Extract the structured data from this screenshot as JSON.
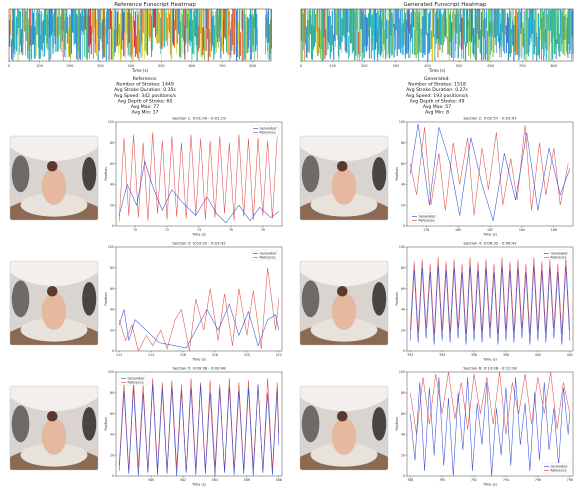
{
  "heatmaps": [
    {
      "title": "Reference Funscript Heatmap",
      "xlabel": "Time (s)",
      "ticks": [
        0,
        100,
        200,
        300,
        400,
        500,
        600,
        700,
        800
      ],
      "xlim": [
        0,
        860
      ],
      "gap": [
        815,
        840
      ],
      "seed": 7
    },
    {
      "title": "Generated Funscript Heatmap",
      "xlabel": "Time (s)",
      "ticks": [
        0,
        100,
        200,
        300,
        400,
        500,
        600,
        700,
        800
      ],
      "xlim": [
        0,
        860
      ],
      "gap": [],
      "seed": 31
    }
  ],
  "stats": [
    {
      "lines": [
        "Reference:",
        "Number of Strokes: 1449",
        "Avg Stroke Duration: 0.35s",
        "Avg Speed: 342 positions/s",
        "Avg Depth of Stroke: 60",
        "Avg Max: 77",
        "Avg Min: 17"
      ]
    },
    {
      "lines": [
        "Generated:",
        "Number of Strokes: 1518",
        "Avg Stroke Duration: 0.27s",
        "Avg Speed: 193 positions/s",
        "Avg Depth of Stroke: 49",
        "Avg Max: 57",
        "Avg Min: 8"
      ]
    }
  ],
  "colors": {
    "generated": "#1f3fd6",
    "reference": "#e03a3a",
    "thumb_bg": "#d9d4cf"
  },
  "chart_data": [
    {
      "type": "line",
      "title": "Section 1: 0:01:09 - 0:01:19",
      "xlabel": "Time (s)",
      "ylabel": "Position",
      "xlim": [
        68.8,
        79.2
      ],
      "ylim": [
        0,
        100
      ],
      "xticks": [
        70,
        72,
        74,
        76,
        78
      ],
      "yticks": [
        0,
        20,
        40,
        60,
        80,
        100
      ],
      "legend": "top-right",
      "series": [
        {
          "name": "Generated",
          "x": [
            69.0,
            69.5,
            70.1,
            70.6,
            71.1,
            71.7,
            72.3,
            73.0,
            73.8,
            74.5,
            75.1,
            75.7,
            76.5,
            77.2,
            77.8,
            78.5,
            79.0
          ],
          "y": [
            10,
            40,
            20,
            62,
            38,
            15,
            35,
            22,
            10,
            28,
            12,
            3,
            20,
            5,
            18,
            8,
            14
          ]
        },
        {
          "name": "Reference",
          "x": [
            69.0,
            69.3,
            69.6,
            69.9,
            70.2,
            70.5,
            70.8,
            71.1,
            71.4,
            71.7,
            72.0,
            72.3,
            72.6,
            72.9,
            73.2,
            73.5,
            73.8,
            74.1,
            74.4,
            74.7,
            75.0,
            75.3,
            75.6,
            75.9,
            76.2,
            76.5,
            76.8,
            77.1,
            77.4,
            77.7,
            78.0,
            78.3,
            78.6,
            78.9
          ],
          "y": [
            5,
            85,
            10,
            88,
            8,
            80,
            5,
            90,
            12,
            82,
            6,
            86,
            9,
            80,
            7,
            88,
            10,
            84,
            6,
            82,
            8,
            86,
            12,
            80,
            5,
            88,
            9,
            84,
            6,
            85,
            10,
            82,
            7,
            86
          ]
        }
      ]
    },
    {
      "type": "line",
      "title": "Section 2: 0:02:57 - 0:03:07",
      "xlabel": "Time (s)",
      "ylabel": "Position",
      "xlim": [
        176.8,
        187.2
      ],
      "ylim": [
        0,
        100
      ],
      "xticks": [
        178,
        180,
        182,
        184,
        186
      ],
      "yticks": [
        0,
        20,
        40,
        60,
        80,
        100
      ],
      "legend": "bottom-left",
      "series": [
        {
          "name": "Generated",
          "x": [
            177.0,
            177.5,
            178.2,
            178.8,
            179.5,
            180.1,
            180.8,
            181.5,
            182.2,
            182.9,
            183.6,
            184.3,
            185.0,
            185.7,
            186.4,
            187.0
          ],
          "y": [
            50,
            98,
            20,
            95,
            60,
            10,
            85,
            40,
            5,
            70,
            25,
            90,
            15,
            75,
            30,
            55
          ]
        },
        {
          "name": "Reference",
          "x": [
            177.0,
            177.4,
            177.9,
            178.3,
            178.8,
            179.2,
            179.7,
            180.1,
            180.6,
            181.0,
            181.5,
            181.9,
            182.4,
            182.8,
            183.3,
            183.7,
            184.2,
            184.6,
            185.1,
            185.5,
            186.0,
            186.4,
            186.9
          ],
          "y": [
            60,
            30,
            95,
            20,
            70,
            15,
            80,
            40,
            85,
            10,
            75,
            35,
            90,
            20,
            65,
            25,
            97,
            15,
            80,
            30,
            75,
            20,
            60
          ]
        }
      ]
    },
    {
      "type": "line",
      "title": "Section 3: 0:03:32 - 0:03:42",
      "xlabel": "Time (s)",
      "ylabel": "Position",
      "xlim": [
        211.8,
        222.2
      ],
      "ylim": [
        0,
        100
      ],
      "xticks": [
        212,
        214,
        216,
        218,
        220,
        222
      ],
      "yticks": [
        0,
        20,
        40,
        60,
        80,
        100
      ],
      "legend": "top-right",
      "series": [
        {
          "name": "Generated",
          "x": [
            212.0,
            212.3,
            212.6,
            213.0,
            214.5,
            216.2,
            217.5,
            218.2,
            218.9,
            219.5,
            220.1,
            220.7,
            221.3,
            221.8,
            222.0
          ],
          "y": [
            25,
            40,
            10,
            30,
            8,
            3,
            40,
            20,
            45,
            15,
            38,
            5,
            30,
            35,
            20
          ]
        },
        {
          "name": "Reference",
          "x": [
            212.0,
            212.4,
            212.8,
            213.2,
            213.7,
            214.1,
            214.6,
            215.0,
            215.5,
            215.9,
            216.4,
            216.8,
            217.3,
            217.7,
            218.2,
            218.6,
            219.1,
            219.5,
            220.0,
            220.4,
            220.9,
            221.3,
            221.8,
            222.0
          ],
          "y": [
            30,
            10,
            25,
            0,
            15,
            5,
            20,
            2,
            30,
            40,
            0,
            50,
            20,
            60,
            10,
            55,
            5,
            60,
            15,
            58,
            2,
            80,
            20,
            50
          ]
        }
      ]
    },
    {
      "type": "line",
      "title": "Section 4: 0:06:32 - 0:06:42",
      "xlabel": "Time (s)",
      "ylabel": "Position",
      "xlim": [
        391.8,
        402.2
      ],
      "ylim": [
        0,
        100
      ],
      "xticks": [
        392,
        394,
        396,
        398,
        400,
        402
      ],
      "yticks": [
        0,
        20,
        40,
        60,
        80,
        100
      ],
      "legend": "top-right",
      "series": [
        {
          "name": "Generated",
          "x": [
            392.0,
            392.25,
            392.5,
            392.75,
            393.0,
            393.25,
            393.5,
            393.75,
            394.0,
            394.25,
            394.5,
            394.75,
            395.0,
            395.25,
            395.5,
            395.75,
            396.0,
            396.25,
            396.5,
            396.75,
            397.0,
            397.25,
            397.5,
            397.75,
            398.0,
            398.25,
            398.5,
            398.75,
            399.0,
            399.25,
            399.5,
            399.75,
            400.0,
            400.25,
            400.5,
            400.75,
            401.0,
            401.25,
            401.5,
            401.75,
            402.0
          ],
          "y": [
            10,
            78,
            8,
            80,
            12,
            76,
            6,
            82,
            10,
            78,
            8,
            80,
            12,
            76,
            6,
            82,
            10,
            78,
            8,
            80,
            12,
            76,
            6,
            82,
            10,
            78,
            8,
            80,
            12,
            76,
            6,
            82,
            10,
            78,
            8,
            80,
            12,
            76,
            6,
            82,
            10
          ]
        },
        {
          "name": "Reference",
          "x": [
            392.0,
            392.25,
            392.5,
            392.75,
            393.0,
            393.25,
            393.5,
            393.75,
            394.0,
            394.25,
            394.5,
            394.75,
            395.0,
            395.25,
            395.5,
            395.75,
            396.0,
            396.25,
            396.5,
            396.75,
            397.0,
            397.25,
            397.5,
            397.75,
            398.0,
            398.25,
            398.5,
            398.75,
            399.0,
            399.25,
            399.5,
            399.75,
            400.0,
            400.25,
            400.5,
            400.75,
            401.0,
            401.25,
            401.5,
            401.75,
            402.0
          ],
          "y": [
            20,
            86,
            18,
            88,
            22,
            84,
            16,
            90,
            20,
            86,
            18,
            88,
            22,
            84,
            16,
            90,
            20,
            86,
            18,
            88,
            22,
            84,
            16,
            90,
            20,
            86,
            18,
            88,
            22,
            84,
            16,
            90,
            20,
            86,
            18,
            88,
            22,
            84,
            16,
            90,
            20
          ]
        }
      ]
    },
    {
      "type": "line",
      "title": "Section 5: 0:09:38 - 0:09:48",
      "xlabel": "Time (s)",
      "ylabel": "Position",
      "xlim": [
        577.8,
        588.2
      ],
      "ylim": [
        0,
        100
      ],
      "xticks": [
        580,
        582,
        584,
        586,
        588
      ],
      "yticks": [
        0,
        20,
        40,
        60,
        80,
        100
      ],
      "legend": "top-left",
      "series": [
        {
          "name": "Generated",
          "x": [
            578.0,
            578.3,
            578.6,
            578.9,
            579.2,
            579.5,
            579.8,
            580.1,
            580.4,
            580.7,
            581.0,
            581.3,
            581.6,
            581.9,
            582.2,
            582.5,
            582.8,
            583.1,
            583.4,
            583.7,
            584.0,
            584.3,
            584.6,
            584.9,
            585.2,
            585.5,
            585.8,
            586.1,
            586.4,
            586.7,
            587.0,
            587.3,
            587.6,
            587.9,
            588.0
          ],
          "y": [
            5,
            82,
            2,
            85,
            0,
            80,
            3,
            88,
            1,
            84,
            2,
            86,
            0,
            82,
            3,
            85,
            1,
            88,
            2,
            80,
            0,
            84,
            3,
            86,
            1,
            82,
            2,
            85,
            0,
            88,
            3,
            80,
            1,
            84,
            30
          ]
        },
        {
          "name": "Reference",
          "x": [
            578.0,
            578.3,
            578.6,
            578.9,
            579.2,
            579.5,
            579.8,
            580.1,
            580.4,
            580.7,
            581.0,
            581.3,
            581.6,
            581.9,
            582.2,
            582.5,
            582.8,
            583.1,
            583.4,
            583.7,
            584.0,
            584.3,
            584.6,
            584.9,
            585.2,
            585.5,
            585.8,
            586.1,
            586.4,
            586.7,
            587.0,
            587.3,
            587.6,
            587.9,
            588.0
          ],
          "y": [
            10,
            90,
            5,
            92,
            8,
            88,
            4,
            94,
            6,
            90,
            5,
            92,
            8,
            88,
            4,
            94,
            6,
            90,
            5,
            92,
            8,
            88,
            4,
            94,
            6,
            90,
            5,
            92,
            8,
            88,
            4,
            94,
            6,
            90,
            40
          ]
        }
      ]
    },
    {
      "type": "line",
      "title": "Section 6: 0:13:08 - 0:13:18",
      "xlabel": "Time (s)",
      "ylabel": "Position",
      "xlim": [
        787.8,
        798.2
      ],
      "ylim": [
        0,
        100
      ],
      "xticks": [
        788,
        790,
        792,
        794,
        796,
        798
      ],
      "yticks": [
        0,
        20,
        40,
        60,
        80,
        100
      ],
      "legend": "bottom-right",
      "series": [
        {
          "name": "Generated",
          "x": [
            788.0,
            788.3,
            788.6,
            788.9,
            789.2,
            789.5,
            789.8,
            790.1,
            790.4,
            790.7,
            791.0,
            791.3,
            791.6,
            791.9,
            792.2,
            792.5,
            792.8,
            793.1,
            793.4,
            793.7,
            794.0,
            794.3,
            794.6,
            794.9,
            795.2,
            795.5,
            795.8,
            796.1,
            796.4,
            796.7,
            797.0,
            797.3,
            797.6,
            797.9,
            798.0
          ],
          "y": [
            60,
            15,
            90,
            5,
            85,
            20,
            95,
            10,
            75,
            0,
            80,
            25,
            95,
            5,
            70,
            30,
            90,
            0,
            65,
            20,
            85,
            10,
            95,
            30,
            70,
            5,
            80,
            15,
            90,
            25,
            65,
            10,
            85,
            40,
            60
          ]
        },
        {
          "name": "Reference",
          "x": [
            788.0,
            788.4,
            788.8,
            789.2,
            789.6,
            790.0,
            790.4,
            790.8,
            791.2,
            791.6,
            792.0,
            792.4,
            792.8,
            793.2,
            793.6,
            794.0,
            794.4,
            794.8,
            795.2,
            795.6,
            796.0,
            796.4,
            796.8,
            797.2,
            797.6,
            798.0
          ],
          "y": [
            80,
            40,
            95,
            50,
            98,
            60,
            100,
            55,
            90,
            45,
            98,
            60,
            95,
            50,
            100,
            40,
            90,
            60,
            98,
            50,
            95,
            60,
            100,
            45,
            90,
            60
          ]
        }
      ]
    }
  ]
}
